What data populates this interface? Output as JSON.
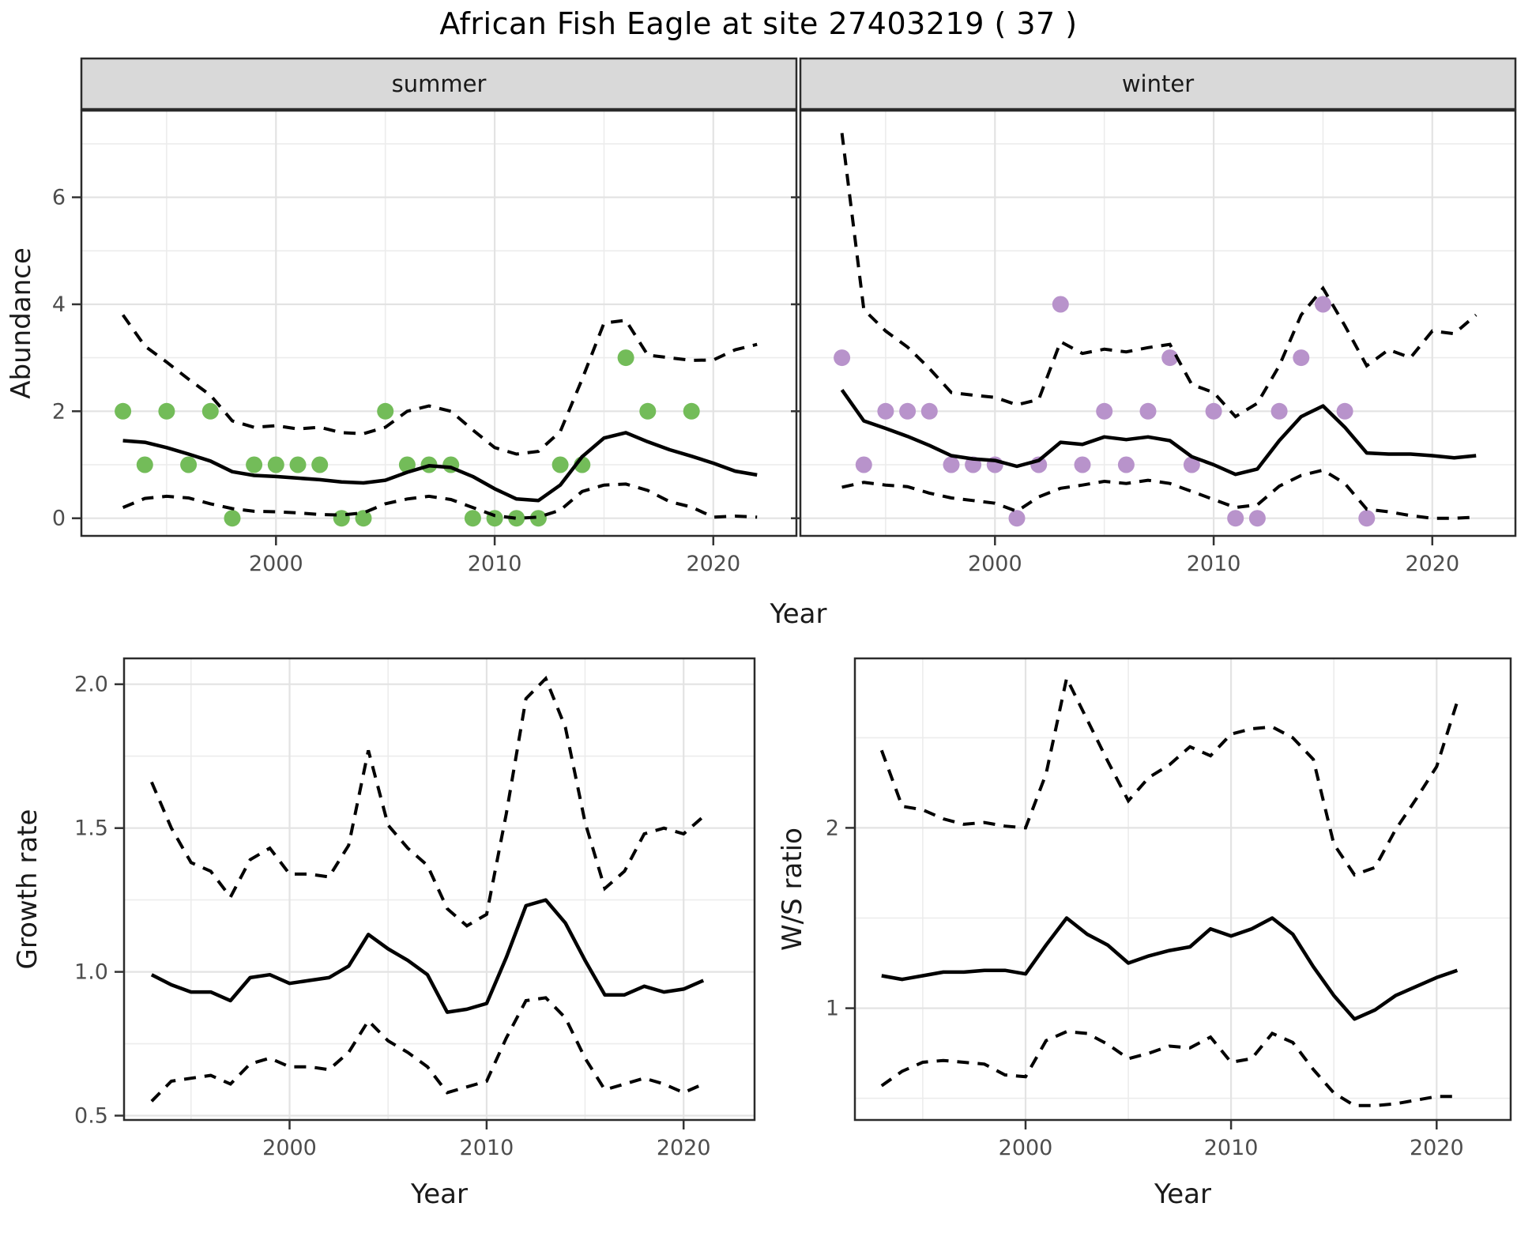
{
  "title": "African Fish Eagle at site 27403219 ( 37 )",
  "colors": {
    "summer_points": "#73BC59",
    "winter_points": "#B893CB",
    "trend_line": "#000000",
    "ci_line": "#000000",
    "strip_bg": "#D9D9D9",
    "panel_bg": "#FFFFFF",
    "grid_major": "#E3E3E3",
    "grid_minor": "#ECECEC",
    "panel_border": "#2B2B2B",
    "tick_text": "#4D4D4D",
    "axis_title_text": "#1A1A1A"
  },
  "shared_axis": {
    "top_xlabel": "Year",
    "top_ylabel": "Abundance"
  },
  "chart_data": [
    {
      "id": "abundance-summer",
      "type": "scatter",
      "facet_label": "summer",
      "xlabel": "Year",
      "ylabel": "Abundance",
      "xlim": [
        1991.1,
        2023.8
      ],
      "ylim": [
        -0.33,
        7.62
      ],
      "x_ticks": [
        2000,
        2010,
        2020
      ],
      "x_tick_labels": [
        "2000",
        "2010",
        "2020"
      ],
      "x_minor": [
        1995,
        2005,
        2015
      ],
      "y_ticks": [
        0,
        2,
        4,
        6
      ],
      "y_tick_labels": [
        "0",
        "2",
        "4",
        "6"
      ],
      "y_minor": [
        1,
        3,
        5,
        7
      ],
      "point_color": "#73BC59",
      "points": {
        "x": [
          1993,
          1994,
          1995,
          1996,
          1997,
          1998,
          1999,
          2000,
          2001,
          2002,
          2003,
          2004,
          2005,
          2006,
          2007,
          2008,
          2009,
          2010,
          2011,
          2012,
          2013,
          2014,
          2016,
          2017,
          2019
        ],
        "y": [
          2,
          1,
          2,
          1,
          2,
          0,
          1,
          1,
          1,
          1,
          0,
          0,
          2,
          1,
          1,
          1,
          0,
          0,
          0,
          0,
          1,
          1,
          3,
          2,
          2
        ]
      },
      "trend_years": [
        1993,
        1994,
        1995,
        1996,
        1997,
        1998,
        1999,
        2000,
        2001,
        2002,
        2003,
        2004,
        2005,
        2006,
        2007,
        2008,
        2009,
        2010,
        2011,
        2012,
        2013,
        2014,
        2015,
        2016,
        2017,
        2018,
        2019,
        2020,
        2021,
        2022
      ],
      "fit": [
        1.45,
        1.42,
        1.32,
        1.2,
        1.07,
        0.87,
        0.8,
        0.78,
        0.75,
        0.72,
        0.68,
        0.66,
        0.71,
        0.86,
        0.98,
        0.95,
        0.78,
        0.55,
        0.36,
        0.33,
        0.62,
        1.15,
        1.5,
        1.6,
        1.43,
        1.28,
        1.16,
        1.03,
        0.88,
        0.81
      ],
      "ci_upper": [
        3.8,
        3.22,
        2.92,
        2.6,
        2.3,
        1.82,
        1.7,
        1.73,
        1.67,
        1.7,
        1.6,
        1.58,
        1.7,
        2.0,
        2.1,
        2.0,
        1.65,
        1.32,
        1.2,
        1.25,
        1.62,
        2.6,
        3.65,
        3.7,
        3.05,
        3.0,
        2.95,
        2.96,
        3.15,
        3.25
      ],
      "ci_lower": [
        0.2,
        0.37,
        0.41,
        0.38,
        0.27,
        0.18,
        0.13,
        0.12,
        0.1,
        0.07,
        0.06,
        0.1,
        0.27,
        0.36,
        0.41,
        0.35,
        0.2,
        0.05,
        0.0,
        0.02,
        0.15,
        0.5,
        0.62,
        0.64,
        0.52,
        0.31,
        0.21,
        0.02,
        0.04,
        0.02
      ]
    },
    {
      "id": "abundance-winter",
      "type": "scatter",
      "facet_label": "winter",
      "xlabel": "Year",
      "ylabel": "Abundance",
      "xlim": [
        1991.1,
        2023.8
      ],
      "ylim": [
        -0.33,
        7.62
      ],
      "x_ticks": [
        2000,
        2010,
        2020
      ],
      "x_tick_labels": [
        "2000",
        "2010",
        "2020"
      ],
      "x_minor": [
        1995,
        2005,
        2015
      ],
      "y_ticks": [
        0,
        2,
        4,
        6
      ],
      "y_tick_labels": [
        "0",
        "2",
        "4",
        "6"
      ],
      "y_minor": [
        1,
        3,
        5,
        7
      ],
      "point_color": "#B893CB",
      "points": {
        "x": [
          1993,
          1994,
          1995,
          1996,
          1997,
          1998,
          1999,
          2000,
          2001,
          2002,
          2003,
          2004,
          2005,
          2006,
          2007,
          2008,
          2009,
          2010,
          2011,
          2012,
          2013,
          2014,
          2015,
          2016,
          2017
        ],
        "y": [
          3,
          1,
          2,
          2,
          2,
          1,
          1,
          1,
          0,
          1,
          4,
          1,
          2,
          1,
          2,
          3,
          1,
          2,
          0,
          0,
          2,
          3,
          4,
          2,
          0
        ]
      },
      "trend_years": [
        1993,
        1994,
        1995,
        1996,
        1997,
        1998,
        1999,
        2000,
        2001,
        2002,
        2003,
        2004,
        2005,
        2006,
        2007,
        2008,
        2009,
        2010,
        2011,
        2012,
        2013,
        2014,
        2015,
        2016,
        2017,
        2018,
        2019,
        2020,
        2021,
        2022
      ],
      "fit": [
        2.4,
        1.82,
        1.68,
        1.53,
        1.36,
        1.17,
        1.11,
        1.08,
        0.97,
        1.08,
        1.42,
        1.38,
        1.52,
        1.47,
        1.52,
        1.45,
        1.15,
        1.0,
        0.82,
        0.92,
        1.45,
        1.9,
        2.1,
        1.7,
        1.22,
        1.2,
        1.2,
        1.17,
        1.13,
        1.17
      ],
      "ci_upper": [
        7.2,
        3.9,
        3.5,
        3.2,
        2.8,
        2.35,
        2.3,
        2.26,
        2.12,
        2.22,
        3.3,
        3.08,
        3.16,
        3.11,
        3.19,
        3.25,
        2.5,
        2.35,
        1.9,
        2.15,
        2.85,
        3.8,
        4.3,
        3.6,
        2.85,
        3.15,
        3.0,
        3.5,
        3.45,
        3.8
      ],
      "ci_lower": [
        0.58,
        0.67,
        0.62,
        0.59,
        0.47,
        0.38,
        0.33,
        0.28,
        0.13,
        0.4,
        0.56,
        0.62,
        0.69,
        0.65,
        0.71,
        0.65,
        0.5,
        0.35,
        0.2,
        0.25,
        0.6,
        0.8,
        0.9,
        0.65,
        0.17,
        0.12,
        0.05,
        0.0,
        0.0,
        0.02
      ]
    },
    {
      "id": "growth-rate",
      "type": "line",
      "facet_label": "",
      "xlabel": "Year",
      "ylabel": "Growth rate",
      "xlim": [
        1991.6,
        2023.6
      ],
      "ylim": [
        0.485,
        2.09
      ],
      "x_ticks": [
        2000,
        2010,
        2020
      ],
      "x_tick_labels": [
        "2000",
        "2010",
        "2020"
      ],
      "x_minor": [
        1995,
        2005,
        2015
      ],
      "y_ticks": [
        0.5,
        1.0,
        1.5,
        2.0
      ],
      "y_tick_labels": [
        "0.5",
        "1.0",
        "1.5",
        "2.0"
      ],
      "y_minor": [
        0.75,
        1.25,
        1.75
      ],
      "trend_years": [
        1993,
        1994,
        1995,
        1996,
        1997,
        1998,
        1999,
        2000,
        2001,
        2002,
        2003,
        2004,
        2005,
        2006,
        2007,
        2008,
        2009,
        2010,
        2011,
        2012,
        2013,
        2014,
        2015,
        2016,
        2017,
        2018,
        2019,
        2020,
        2021
      ],
      "fit": [
        0.99,
        0.955,
        0.93,
        0.93,
        0.9,
        0.98,
        0.99,
        0.96,
        0.97,
        0.98,
        1.02,
        1.13,
        1.08,
        1.04,
        0.99,
        0.86,
        0.87,
        0.89,
        1.05,
        1.23,
        1.25,
        1.17,
        1.04,
        0.92,
        0.92,
        0.95,
        0.93,
        0.94,
        0.97
      ],
      "ci_upper": [
        1.66,
        1.5,
        1.38,
        1.35,
        1.26,
        1.39,
        1.43,
        1.34,
        1.34,
        1.33,
        1.44,
        1.77,
        1.51,
        1.43,
        1.37,
        1.22,
        1.16,
        1.2,
        1.55,
        1.95,
        2.02,
        1.85,
        1.52,
        1.29,
        1.35,
        1.48,
        1.5,
        1.48,
        1.54
      ],
      "ci_lower": [
        0.55,
        0.62,
        0.63,
        0.64,
        0.61,
        0.68,
        0.7,
        0.67,
        0.67,
        0.66,
        0.72,
        0.83,
        0.76,
        0.72,
        0.67,
        0.58,
        0.6,
        0.62,
        0.77,
        0.9,
        0.91,
        0.84,
        0.7,
        0.59,
        0.61,
        0.63,
        0.61,
        0.58,
        0.61
      ]
    },
    {
      "id": "ws-ratio",
      "type": "line",
      "facet_label": "",
      "xlabel": "Year",
      "ylabel": "W/S ratio",
      "xlim": [
        1991.7,
        2023.6
      ],
      "ylim": [
        0.38,
        2.94
      ],
      "x_ticks": [
        2000,
        2010,
        2020
      ],
      "x_tick_labels": [
        "2000",
        "2010",
        "2020"
      ],
      "x_minor": [
        1995,
        2005,
        2015
      ],
      "y_ticks": [
        1,
        2
      ],
      "y_tick_labels": [
        "1",
        "2"
      ],
      "y_minor": [
        0.5,
        1.5,
        2.5
      ],
      "trend_years": [
        1993,
        1994,
        1995,
        1996,
        1997,
        1998,
        1999,
        2000,
        2001,
        2002,
        2003,
        2004,
        2005,
        2006,
        2007,
        2008,
        2009,
        2010,
        2011,
        2012,
        2013,
        2014,
        2015,
        2016,
        2017,
        2018,
        2019,
        2020,
        2021
      ],
      "fit": [
        1.18,
        1.16,
        1.18,
        1.2,
        1.2,
        1.21,
        1.21,
        1.19,
        1.35,
        1.5,
        1.41,
        1.35,
        1.25,
        1.29,
        1.32,
        1.34,
        1.44,
        1.4,
        1.44,
        1.5,
        1.41,
        1.23,
        1.07,
        0.94,
        0.99,
        1.07,
        1.12,
        1.17,
        1.21
      ],
      "ci_upper": [
        2.43,
        2.12,
        2.1,
        2.05,
        2.02,
        2.03,
        2.01,
        2.0,
        2.3,
        2.83,
        2.6,
        2.37,
        2.15,
        2.28,
        2.35,
        2.45,
        2.4,
        2.52,
        2.55,
        2.56,
        2.5,
        2.38,
        1.91,
        1.74,
        1.78,
        1.99,
        2.16,
        2.34,
        2.7
      ],
      "ci_lower": [
        0.57,
        0.65,
        0.7,
        0.71,
        0.7,
        0.69,
        0.63,
        0.62,
        0.82,
        0.87,
        0.86,
        0.8,
        0.72,
        0.75,
        0.79,
        0.78,
        0.84,
        0.7,
        0.72,
        0.86,
        0.81,
        0.66,
        0.53,
        0.46,
        0.46,
        0.47,
        0.49,
        0.51,
        0.51
      ]
    }
  ]
}
